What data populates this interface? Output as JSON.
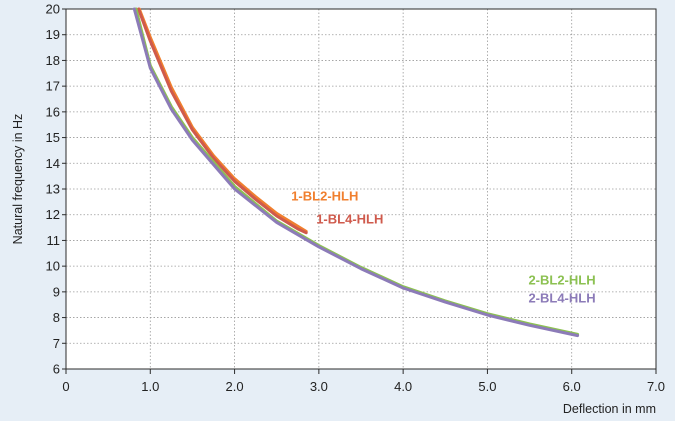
{
  "chart_data": {
    "type": "line",
    "xlabel": "Deflection in mm",
    "ylabel": "Natural frequency in Hz",
    "xlim": [
      0,
      7
    ],
    "ylim": [
      6,
      20
    ],
    "x_ticks": [
      "0",
      "1.0",
      "2.0",
      "3.0",
      "4.0",
      "5.0",
      "6.0",
      "7.0"
    ],
    "y_ticks": [
      "6",
      "7",
      "8",
      "9",
      "10",
      "11",
      "12",
      "13",
      "14",
      "15",
      "16",
      "17",
      "18",
      "19",
      "20"
    ],
    "grid": "dotted",
    "colors": {
      "background": "#e6eef6",
      "plot": "#ffffff",
      "axis": "#2b2b2b",
      "grid": "#9a9a9a"
    },
    "series": [
      {
        "name": "1-BL2-HLH",
        "color": "#f07f2e",
        "x": [
          0.87,
          1.0,
          1.25,
          1.5,
          1.75,
          2.0,
          2.25,
          2.5,
          2.75,
          2.85
        ],
        "y": [
          20.0,
          18.9,
          16.95,
          15.4,
          14.3,
          13.4,
          12.7,
          12.05,
          11.55,
          11.35
        ]
      },
      {
        "name": "1-BL4-HLH",
        "color": "#cf5a4c",
        "x": [
          0.86,
          1.0,
          1.25,
          1.5,
          1.75,
          2.0,
          2.25,
          2.5,
          2.75,
          2.85
        ],
        "y": [
          20.0,
          18.75,
          16.8,
          15.3,
          14.2,
          13.3,
          12.6,
          11.95,
          11.45,
          11.3
        ]
      },
      {
        "name": "2-BL2-HLH",
        "color": "#8cc152",
        "x": [
          0.83,
          1.0,
          1.25,
          1.5,
          2.0,
          2.5,
          3.0,
          3.5,
          4.0,
          4.5,
          5.0,
          5.5,
          6.07
        ],
        "y": [
          20.0,
          17.8,
          16.2,
          15.0,
          13.1,
          11.75,
          10.8,
          9.95,
          9.2,
          8.65,
          8.15,
          7.75,
          7.35
        ]
      },
      {
        "name": "2-BL4-HLH",
        "color": "#8c7bb8",
        "x": [
          0.81,
          1.0,
          1.25,
          1.5,
          2.0,
          2.5,
          3.0,
          3.5,
          4.0,
          4.5,
          5.0,
          5.5,
          6.07
        ],
        "y": [
          20.0,
          17.7,
          16.1,
          14.9,
          13.0,
          11.7,
          10.75,
          9.9,
          9.15,
          8.6,
          8.1,
          7.7,
          7.3
        ]
      }
    ]
  }
}
